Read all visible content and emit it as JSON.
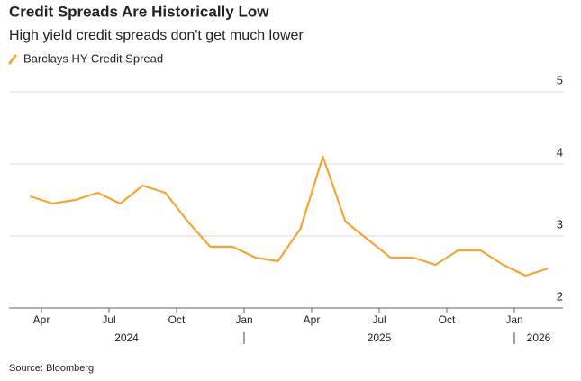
{
  "chart_data": {
    "type": "line",
    "title": "Credit Spreads Are Historically Low",
    "subtitle": "High yield credit spreads don't get much lower",
    "source": "Source: Bloomberg",
    "x": [
      "2024-03",
      "2024-04",
      "2024-05",
      "2024-06",
      "2024-07",
      "2024-08",
      "2024-09",
      "2024-10",
      "2024-11",
      "2024-12",
      "2025-01",
      "2025-02",
      "2025-03",
      "2025-04",
      "2025-05",
      "2025-06",
      "2025-07",
      "2025-08",
      "2025-09",
      "2025-10",
      "2025-11",
      "2025-12",
      "2026-01",
      "2026-02"
    ],
    "series": [
      {
        "name": "Barclays HY Credit Spread",
        "color": "#f5a533",
        "values": [
          3.55,
          3.45,
          3.5,
          3.6,
          3.45,
          3.7,
          3.6,
          3.2,
          2.85,
          2.85,
          2.7,
          2.65,
          3.1,
          4.1,
          3.2,
          2.95,
          2.7,
          2.7,
          2.6,
          2.8,
          2.8,
          2.6,
          2.45,
          2.55
        ]
      }
    ],
    "xlim": [
      "2024-03",
      "2026-03"
    ],
    "xticks": [
      {
        "value": "2024-04",
        "label": "Apr"
      },
      {
        "value": "2024-07",
        "label": "Jul"
      },
      {
        "value": "2024-10",
        "label": "Oct"
      },
      {
        "value": "2025-01",
        "label": "Jan"
      },
      {
        "value": "2025-04",
        "label": "Apr"
      },
      {
        "value": "2025-07",
        "label": "Jul"
      },
      {
        "value": "2025-10",
        "label": "Oct"
      },
      {
        "value": "2026-01",
        "label": "Jan"
      }
    ],
    "year_ticks": [
      {
        "value": "2024-01",
        "label": "2024"
      },
      {
        "value": "2025-01",
        "label": "2025"
      },
      {
        "value": "2026-01",
        "label": "2026"
      }
    ],
    "ylim": [
      2,
      5
    ],
    "yticks": [
      2,
      3,
      4,
      5
    ],
    "grid": true
  }
}
